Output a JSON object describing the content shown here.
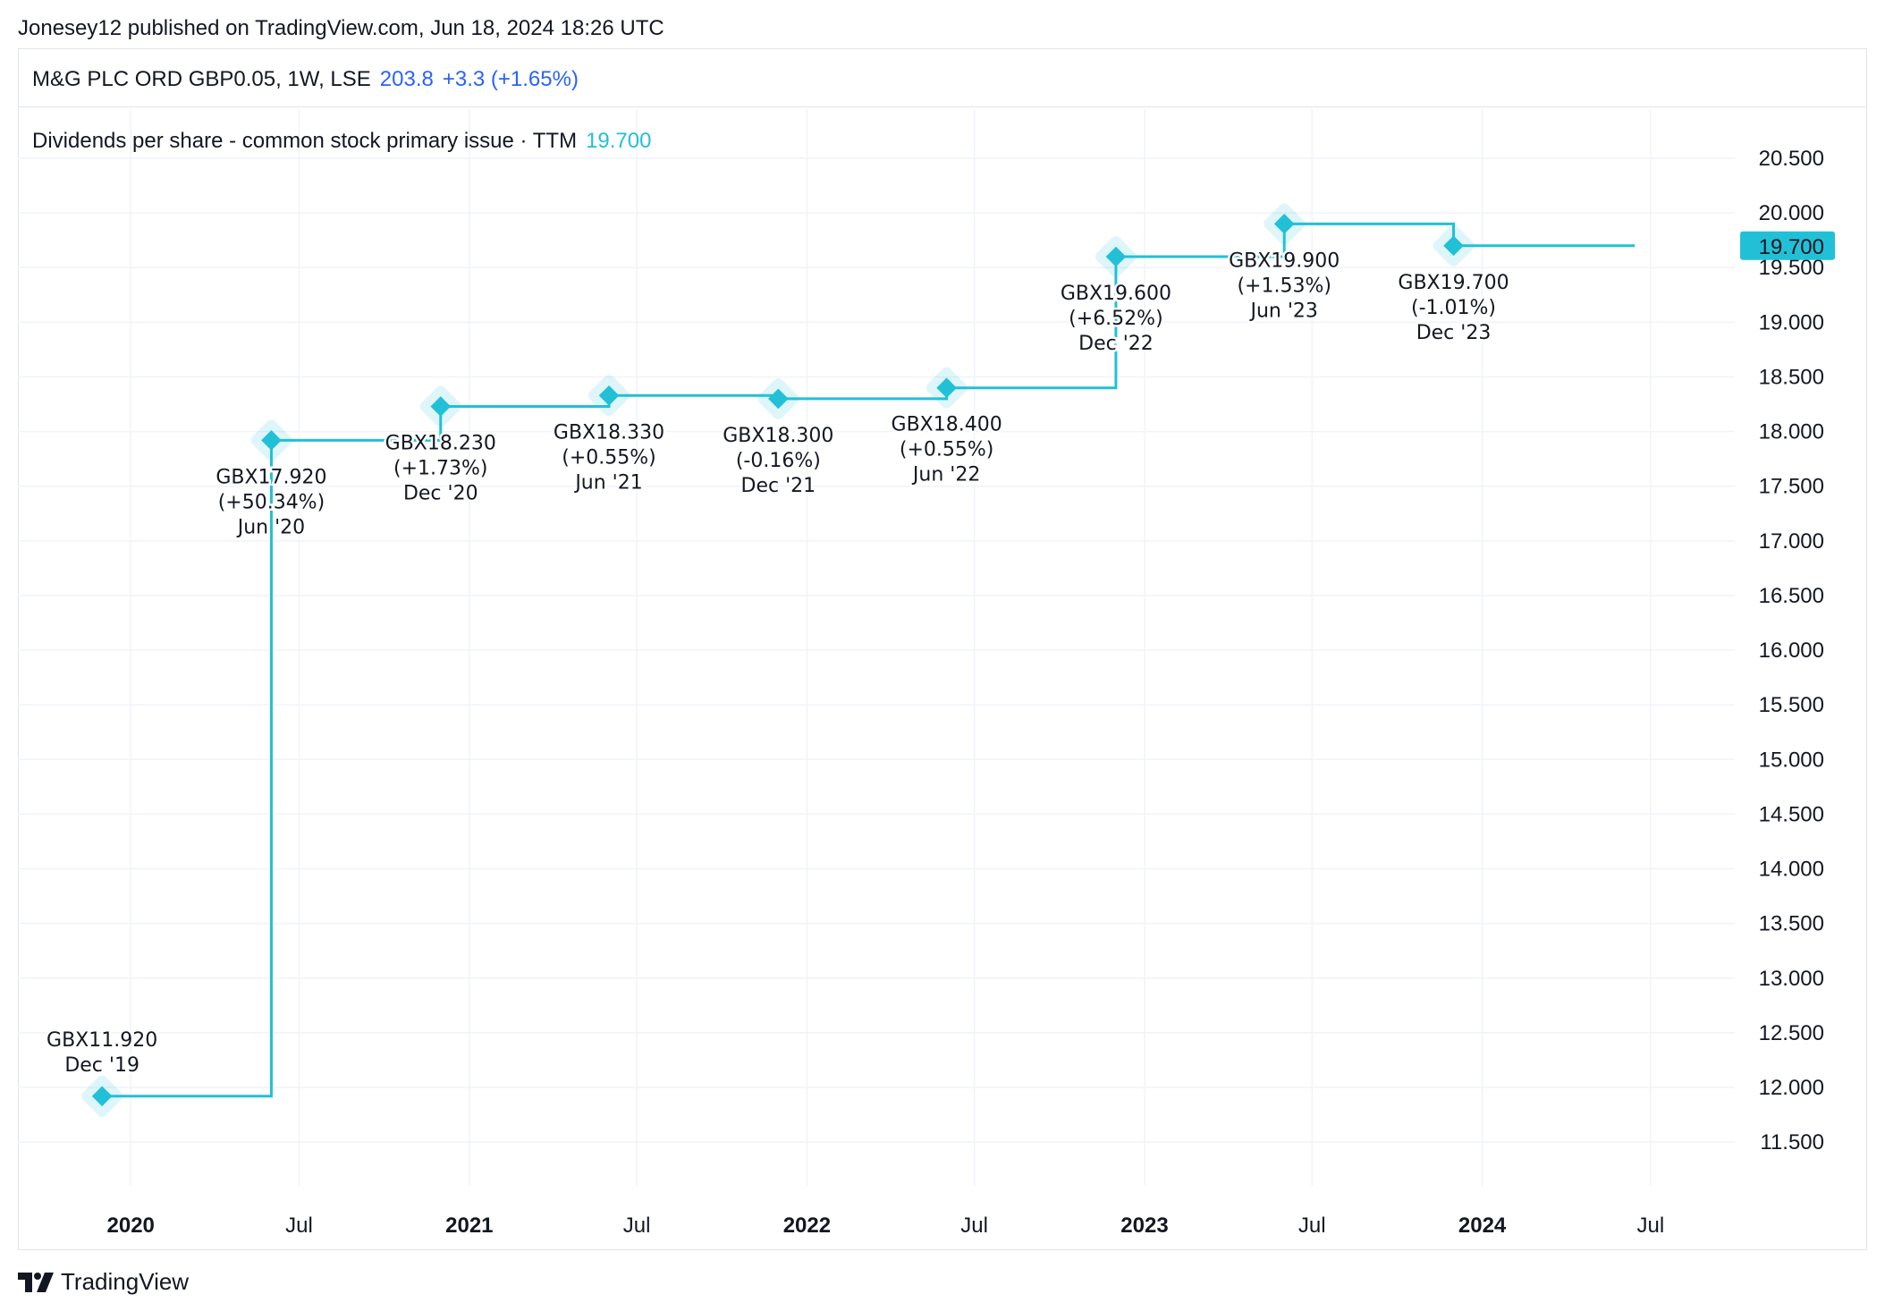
{
  "header": {
    "published_by": "Jonesey12 published on TradingView.com, Jun 18, 2024 18:26 UTC"
  },
  "symbol": {
    "name": "M&G PLC ORD GBP0.05, 1W, LSE",
    "price": "203.8",
    "change": "+3.3 (+1.65%)"
  },
  "indicator": {
    "label": "Dividends per share - common stock primary issue · TTM",
    "value": "19.700"
  },
  "footer": {
    "brand": "TradingView"
  },
  "colors": {
    "series": "#22c0d6",
    "accent": "#2962ff",
    "grid": "#f0f3fa"
  },
  "chart_data": {
    "type": "line",
    "step": true,
    "series": [
      {
        "values": [
          11.92,
          17.92,
          18.23,
          18.33,
          18.3,
          18.4,
          19.6,
          19.9,
          19.7
        ]
      }
    ],
    "x": [
      "2019-12-01",
      "2020-06-01",
      "2020-12-01",
      "2021-06-01",
      "2021-12-01",
      "2022-06-01",
      "2022-12-01",
      "2023-06-01",
      "2023-12-01"
    ],
    "line_end": "2024-06-14",
    "last_value_label": "19.700",
    "annotations": [
      {
        "value": "GBX11.920",
        "change": "",
        "period": "Dec '19",
        "pos": "above"
      },
      {
        "value": "GBX17.920",
        "change": "(+50.34%)",
        "period": "Jun '20",
        "pos": "below"
      },
      {
        "value": "GBX18.230",
        "change": "(+1.73%)",
        "period": "Dec '20",
        "pos": "below"
      },
      {
        "value": "GBX18.330",
        "change": "(+0.55%)",
        "period": "Jun '21",
        "pos": "below"
      },
      {
        "value": "GBX18.300",
        "change": "(-0.16%)",
        "period": "Dec '21",
        "pos": "below"
      },
      {
        "value": "GBX18.400",
        "change": "(+0.55%)",
        "period": "Jun '22",
        "pos": "below"
      },
      {
        "value": "GBX19.600",
        "change": "(+6.52%)",
        "period": "Dec '22",
        "pos": "below"
      },
      {
        "value": "GBX19.900",
        "change": "(+1.53%)",
        "period": "Jun '23",
        "pos": "below"
      },
      {
        "value": "GBX19.700",
        "change": "(-1.01%)",
        "period": "Dec '23",
        "pos": "below"
      }
    ],
    "ylim": [
      11.1,
      20.95
    ],
    "yticks": [
      "11.500",
      "12.000",
      "12.500",
      "13.000",
      "13.500",
      "14.000",
      "14.500",
      "15.000",
      "15.500",
      "16.000",
      "16.500",
      "17.000",
      "17.500",
      "18.000",
      "18.500",
      "19.000",
      "19.500",
      "20.000",
      "20.500"
    ],
    "xlim": [
      "2019-09-01",
      "2024-09-30"
    ],
    "xticks": [
      {
        "date": "2020-01-01",
        "label": "2020",
        "year": true
      },
      {
        "date": "2020-07-01",
        "label": "Jul",
        "year": false
      },
      {
        "date": "2021-01-01",
        "label": "2021",
        "year": true
      },
      {
        "date": "2021-07-01",
        "label": "Jul",
        "year": false
      },
      {
        "date": "2022-01-01",
        "label": "2022",
        "year": true
      },
      {
        "date": "2022-07-01",
        "label": "Jul",
        "year": false
      },
      {
        "date": "2023-01-01",
        "label": "2023",
        "year": true
      },
      {
        "date": "2023-07-01",
        "label": "Jul",
        "year": false
      },
      {
        "date": "2024-01-01",
        "label": "2024",
        "year": true
      },
      {
        "date": "2024-07-01",
        "label": "Jul",
        "year": false
      }
    ],
    "grid": true
  }
}
